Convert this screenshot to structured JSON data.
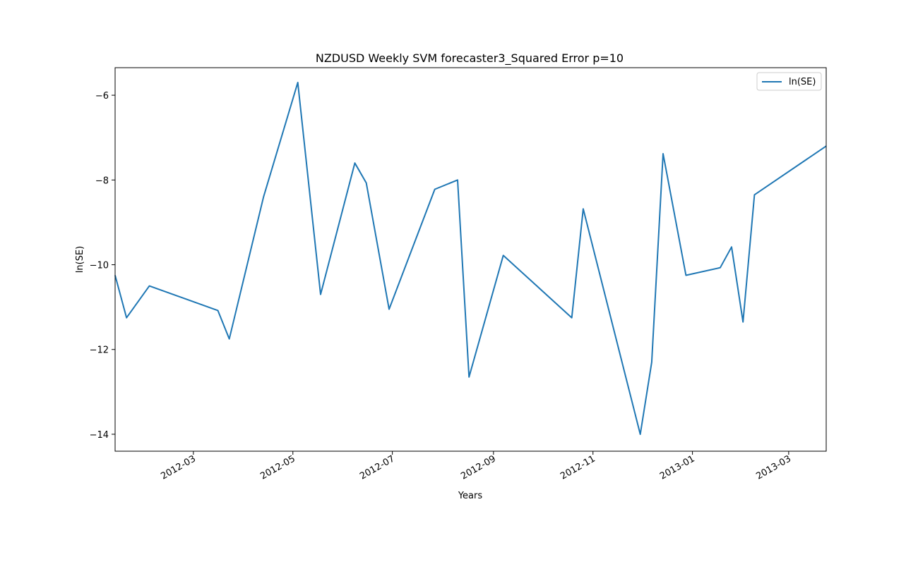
{
  "chart_data": {
    "type": "line",
    "title": "NZDUSD Weekly SVM forecaster3_Squared Error p=10",
    "xlabel": "Years",
    "ylabel": "ln(SE)",
    "legend_position": "top-right",
    "grid": false,
    "xlim": [
      "2012-01-13",
      "2013-03-24"
    ],
    "ylim": [
      -14.4,
      -5.35
    ],
    "x_ticks": [
      "2012-03-01",
      "2012-05-01",
      "2012-07-01",
      "2012-09-01",
      "2012-11-01",
      "2013-01-01",
      "2013-03-01"
    ],
    "x_tick_labels": [
      "2012-03",
      "2012-05",
      "2012-07",
      "2012-09",
      "2012-11",
      "2013-01",
      "2013-03"
    ],
    "y_ticks": [
      -6,
      -8,
      -10,
      -12,
      -14
    ],
    "y_tick_labels": [
      "−6",
      "−8",
      "−10",
      "−12",
      "−14"
    ],
    "series": [
      {
        "name": "ln(SE)",
        "color": "#1f77b4",
        "x": [
          "2012-01-13",
          "2012-01-20",
          "2012-02-03",
          "2012-03-16",
          "2012-03-23",
          "2012-04-13",
          "2012-05-04",
          "2012-05-18",
          "2012-06-08",
          "2012-06-15",
          "2012-06-29",
          "2012-07-27",
          "2012-08-10",
          "2012-08-17",
          "2012-09-07",
          "2012-10-19",
          "2012-10-26",
          "2012-11-30",
          "2012-12-07",
          "2012-12-14",
          "2012-12-28",
          "2013-01-18",
          "2013-01-25",
          "2013-02-01",
          "2013-02-08",
          "2013-03-24"
        ],
        "values": [
          -10.25,
          -11.25,
          -10.5,
          -11.08,
          -11.75,
          -8.4,
          -5.7,
          -10.7,
          -7.6,
          -8.07,
          -11.05,
          -8.22,
          -8.0,
          -12.65,
          -9.78,
          -11.25,
          -8.68,
          -14.0,
          -12.3,
          -7.38,
          -10.25,
          -10.07,
          -9.58,
          -11.35,
          -8.35,
          -7.2
        ]
      }
    ]
  }
}
